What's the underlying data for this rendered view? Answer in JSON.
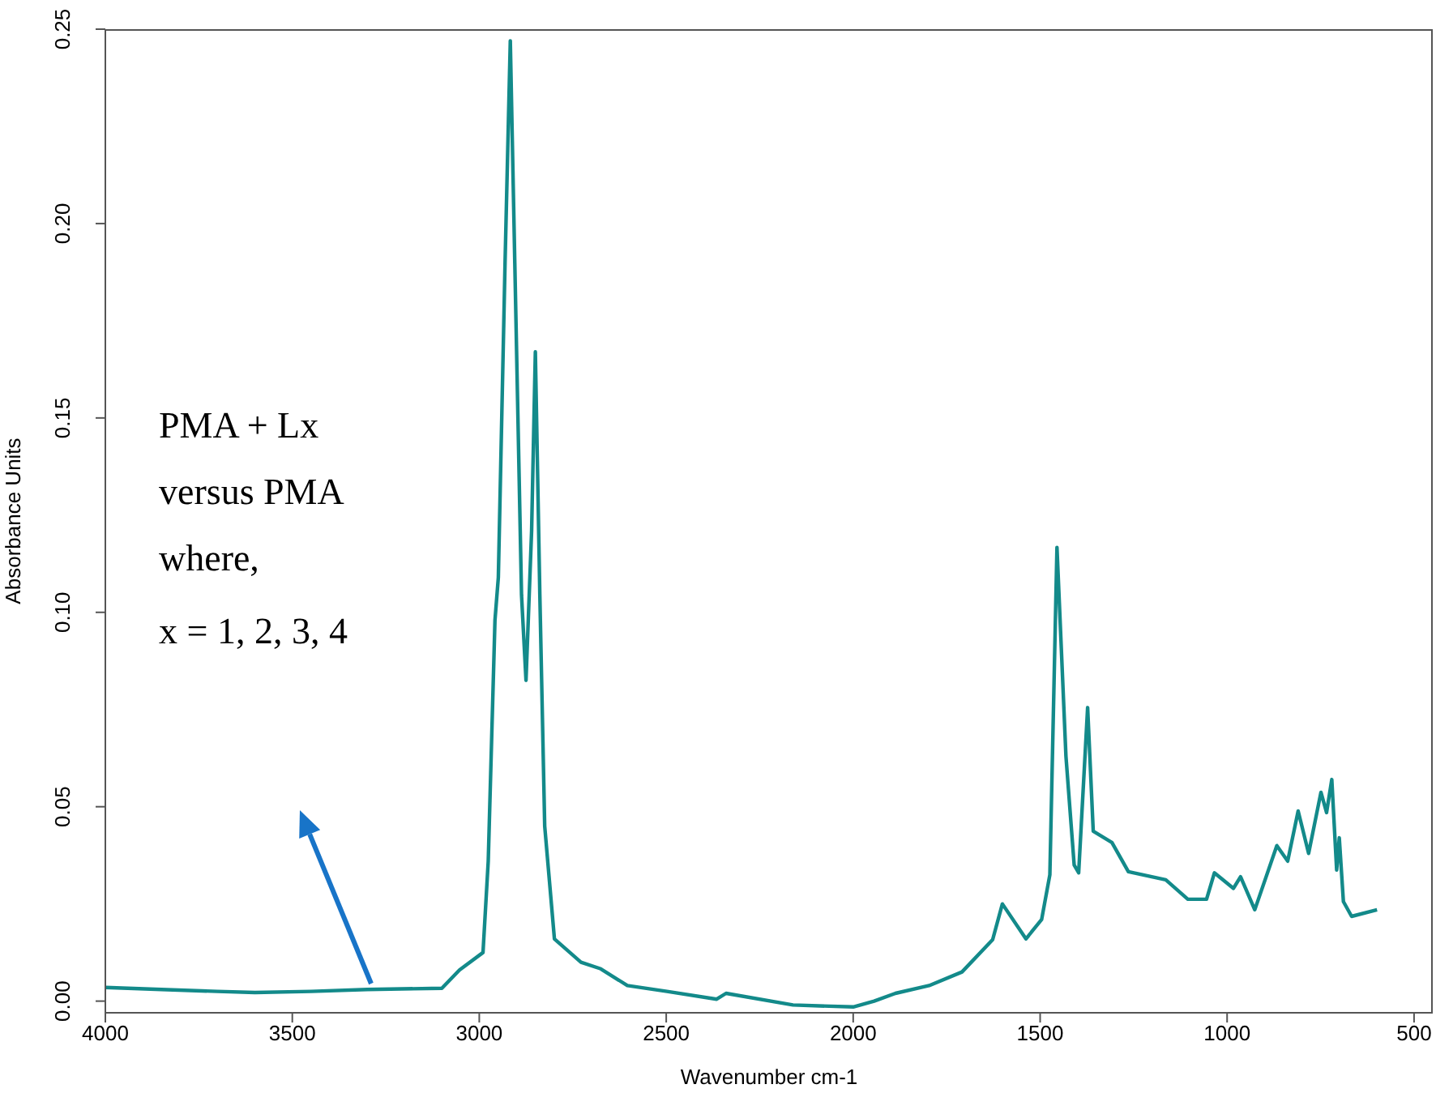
{
  "chart_data": {
    "type": "line",
    "xlabel": "Wavenumber cm-1",
    "ylabel": "Absorbance Units",
    "x": [
      4000,
      3850,
      3700,
      3600,
      3450,
      3300,
      3100,
      3053,
      2990,
      2976,
      2958,
      2949,
      2931,
      2917,
      2905,
      2887,
      2875,
      2860,
      2850,
      2838,
      2825,
      2799,
      2728,
      2675,
      2604,
      2498,
      2365,
      2340,
      2161,
      2000,
      1944,
      1887,
      1797,
      1709,
      1627,
      1601,
      1538,
      1496,
      1474,
      1455,
      1431,
      1409,
      1397,
      1373,
      1358,
      1308,
      1264,
      1164,
      1105,
      1055,
      1034,
      983,
      964,
      926,
      867,
      838,
      810,
      782,
      749,
      734,
      720,
      707,
      700,
      689,
      667,
      599
    ],
    "series": [
      {
        "color": "#138a8a",
        "values": [
          0.0035,
          0.003,
          0.0025,
          0.0022,
          0.0025,
          0.003,
          0.0033,
          0.008,
          0.0125,
          0.036,
          0.098,
          0.109,
          0.19,
          0.247,
          0.19,
          0.1045,
          0.0825,
          0.121,
          0.167,
          0.1045,
          0.045,
          0.016,
          0.01,
          0.0083,
          0.004,
          0.0025,
          0.0005,
          0.002,
          -0.001,
          -0.0015,
          0.0,
          0.002,
          0.004,
          0.0075,
          0.0158,
          0.025,
          0.016,
          0.021,
          0.0325,
          0.1167,
          0.063,
          0.035,
          0.033,
          0.0755,
          0.0437,
          0.0408,
          0.0333,
          0.0312,
          0.0262,
          0.0262,
          0.033,
          0.029,
          0.032,
          0.0235,
          0.04,
          0.036,
          0.0489,
          0.038,
          0.0537,
          0.0485,
          0.057,
          0.0337,
          0.042,
          0.0256,
          0.0218,
          0.0235
        ]
      }
    ],
    "xlim": [
      4000,
      450
    ],
    "xticks": [
      4000,
      3500,
      3000,
      2500,
      2000,
      1500,
      1000,
      500
    ],
    "ylim": [
      -0.003,
      0.25
    ],
    "yticks": [
      {
        "value": 0,
        "label": "0.00"
      },
      0.05,
      {
        "value": 0.1,
        "label": "0.10"
      },
      0.15,
      {
        "value": 0.2,
        "label": "0.20"
      },
      0.25
    ],
    "annotations": [
      "PMA + Lx\nversus PMA\nwhere,\nx = 1, 2, 3, 4"
    ],
    "grid": false,
    "marker": "none",
    "line_style": "solid"
  }
}
